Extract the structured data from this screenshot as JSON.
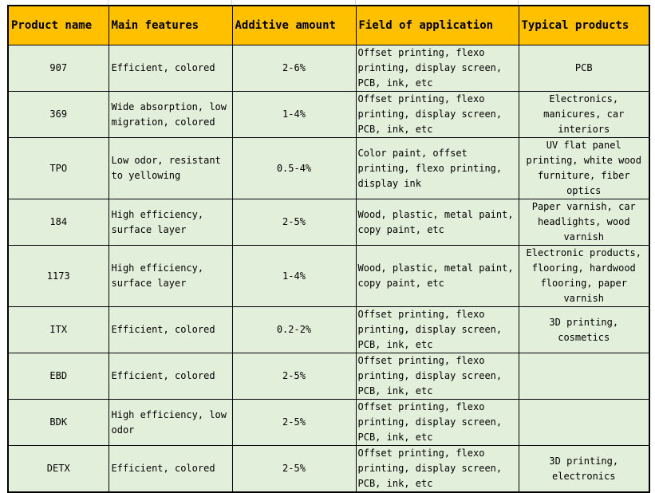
{
  "table": {
    "headers": [
      "Product name",
      "Main features",
      "Additive amount",
      "Field of application",
      "Typical products"
    ],
    "rows": [
      {
        "product": "907",
        "features": "Efficient, colored",
        "amount": "2-6%",
        "application": "Offset printing, flexo printing, display screen, PCB, ink, etc",
        "typical": "PCB"
      },
      {
        "product": "369",
        "features": "Wide absorption, low migration, colored",
        "amount": "1-4%",
        "application": "Offset printing, flexo printing, display screen, PCB, ink, etc",
        "typical": "Electronics, manicures, car interiors"
      },
      {
        "product": "TPO",
        "features": "Low odor, resistant to yellowing",
        "amount": "0.5-4%",
        "application": "Color paint, offset printing, flexo printing, display ink",
        "typical": "UV flat panel printing, white wood furniture, fiber optics"
      },
      {
        "product": "184",
        "features": "High efficiency, surface layer",
        "amount": "2-5%",
        "application": "Wood, plastic, metal paint, copy paint, etc",
        "typical": "Paper varnish, car headlights, wood varnish"
      },
      {
        "product": "1173",
        "features": "High efficiency, surface layer",
        "amount": "1-4%",
        "application": "Wood, plastic, metal paint, copy paint, etc",
        "typical": "Electronic products, flooring, hardwood flooring, paper varnish"
      },
      {
        "product": "ITX",
        "features": "Efficient, colored",
        "amount": "0.2-2%",
        "application": "Offset printing, flexo printing, display screen, PCB, ink, etc",
        "typical": "3D printing, cosmetics"
      },
      {
        "product": "EBD",
        "features": "Efficient, colored",
        "amount": "2-5%",
        "application": "Offset printing, flexo printing, display screen, PCB, ink, etc",
        "typical": ""
      },
      {
        "product": "BDK",
        "features": "High efficiency, low odor",
        "amount": "2-5%",
        "application": "Offset printing, flexo printing, display screen, PCB, ink, etc",
        "typical": ""
      },
      {
        "product": "DETX",
        "features": "Efficient, colored",
        "amount": "2-5%",
        "application": "Offset printing, flexo printing, display screen, PCB, ink, etc",
        "typical": "3D printing, electronics"
      }
    ]
  },
  "colors": {
    "header_bg": "#ffc000",
    "cell_bg": "#e2efda",
    "border": "#000000"
  }
}
